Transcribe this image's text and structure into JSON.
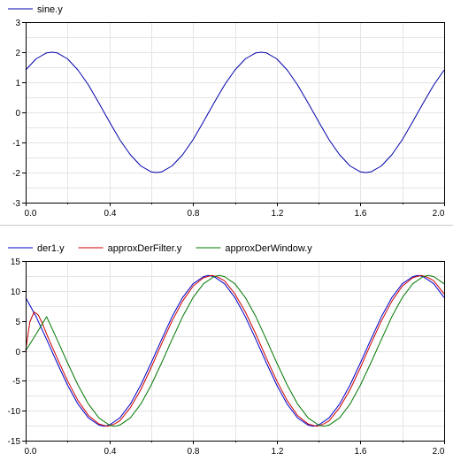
{
  "chart_data": [
    {
      "type": "line",
      "title": "",
      "xlabel": "",
      "ylabel": "",
      "xlim": [
        0,
        2
      ],
      "ylim": [
        -3,
        3
      ],
      "x_ticks": [
        "0.0",
        "0.4",
        "0.8",
        "1.2",
        "1.6",
        "2.0"
      ],
      "y_ticks": [
        "3",
        "2",
        "1",
        "0",
        "-1",
        "-2",
        "-3"
      ],
      "grid": true,
      "legend": "top-left",
      "series": [
        {
          "name": "sine.y",
          "color": "#0000aa",
          "x": [
            0.0,
            0.05,
            0.1,
            0.125,
            0.15,
            0.2,
            0.25,
            0.3,
            0.35,
            0.4,
            0.45,
            0.5,
            0.55,
            0.6,
            0.625,
            0.65,
            0.7,
            0.75,
            0.8,
            0.85,
            0.9,
            0.95,
            1.0,
            1.05,
            1.1,
            1.125,
            1.15,
            1.2,
            1.25,
            1.3,
            1.35,
            1.4,
            1.45,
            1.5,
            1.55,
            1.6,
            1.625,
            1.65,
            1.7,
            1.75,
            1.8,
            1.85,
            1.9,
            1.95,
            2.0
          ],
          "y": [
            1.41,
            1.78,
            1.98,
            2.0,
            1.98,
            1.78,
            1.41,
            0.91,
            0.31,
            -0.31,
            -0.91,
            -1.41,
            -1.78,
            -1.98,
            -2.0,
            -1.98,
            -1.78,
            -1.41,
            -0.91,
            -0.31,
            0.31,
            0.91,
            1.41,
            1.78,
            1.98,
            2.0,
            1.98,
            1.78,
            1.41,
            0.91,
            0.31,
            -0.31,
            -0.91,
            -1.41,
            -1.78,
            -1.98,
            -2.0,
            -1.98,
            -1.78,
            -1.41,
            -0.91,
            -0.31,
            0.31,
            0.91,
            1.41
          ]
        }
      ]
    },
    {
      "type": "line",
      "title": "",
      "xlabel": "",
      "ylabel": "",
      "xlim": [
        0,
        2
      ],
      "ylim": [
        -15,
        15
      ],
      "x_ticks": [
        "0.0",
        "0.4",
        "0.8",
        "1.2",
        "1.6",
        "2.0"
      ],
      "y_ticks": [
        "15",
        "10",
        "5",
        "0",
        "-5",
        "-10",
        "-15"
      ],
      "grid": true,
      "legend": "top-left",
      "series": [
        {
          "name": "der1.y",
          "color": "#0000cc",
          "x": [
            0.0,
            0.05,
            0.1,
            0.15,
            0.2,
            0.25,
            0.3,
            0.35,
            0.375,
            0.4,
            0.45,
            0.5,
            0.55,
            0.6,
            0.65,
            0.7,
            0.75,
            0.8,
            0.85,
            0.875,
            0.9,
            0.95,
            1.0,
            1.05,
            1.1,
            1.15,
            1.2,
            1.25,
            1.3,
            1.35,
            1.375,
            1.4,
            1.45,
            1.5,
            1.55,
            1.6,
            1.65,
            1.7,
            1.75,
            1.8,
            1.85,
            1.875,
            1.9,
            1.95,
            2.0
          ],
          "y": [
            8.9,
            5.7,
            1.9,
            -2.0,
            -5.7,
            -8.9,
            -11.2,
            -12.4,
            -12.6,
            -12.4,
            -11.2,
            -8.9,
            -5.7,
            -2.0,
            1.9,
            5.7,
            8.9,
            11.2,
            12.4,
            12.6,
            12.4,
            11.2,
            8.9,
            5.7,
            1.9,
            -2.0,
            -5.7,
            -8.9,
            -11.2,
            -12.4,
            -12.6,
            -12.4,
            -11.2,
            -8.9,
            -5.7,
            -2.0,
            1.9,
            5.7,
            8.9,
            11.2,
            12.4,
            12.6,
            12.4,
            11.2,
            8.9
          ]
        },
        {
          "name": "approxDerFilter.y",
          "color": "#cc0000",
          "x": [
            0.0,
            0.02,
            0.04,
            0.06,
            0.08,
            0.1,
            0.15,
            0.2,
            0.25,
            0.3,
            0.35,
            0.39,
            0.42,
            0.45,
            0.5,
            0.55,
            0.6,
            0.65,
            0.7,
            0.75,
            0.8,
            0.85,
            0.89,
            0.92,
            0.95,
            1.0,
            1.05,
            1.1,
            1.15,
            1.2,
            1.25,
            1.3,
            1.35,
            1.39,
            1.42,
            1.45,
            1.5,
            1.55,
            1.6,
            1.65,
            1.7,
            1.75,
            1.8,
            1.85,
            1.89,
            1.92,
            1.95,
            2.0
          ],
          "y": [
            0.0,
            4.8,
            6.5,
            6.0,
            4.6,
            2.8,
            -1.2,
            -5.0,
            -8.3,
            -10.8,
            -12.2,
            -12.6,
            -12.3,
            -11.7,
            -9.5,
            -6.5,
            -2.8,
            1.2,
            5.0,
            8.3,
            10.8,
            12.2,
            12.6,
            12.3,
            11.7,
            9.5,
            6.5,
            2.8,
            -1.2,
            -5.0,
            -8.3,
            -10.8,
            -12.2,
            -12.6,
            -12.3,
            -11.7,
            -9.5,
            -6.5,
            -2.8,
            1.2,
            5.0,
            8.3,
            10.8,
            12.2,
            12.6,
            12.3,
            11.7,
            9.5
          ]
        },
        {
          "name": "approxDerWindow.y",
          "color": "#007700",
          "x": [
            0.0,
            0.05,
            0.1,
            0.15,
            0.2,
            0.25,
            0.3,
            0.35,
            0.4,
            0.425,
            0.45,
            0.5,
            0.55,
            0.6,
            0.65,
            0.7,
            0.75,
            0.8,
            0.85,
            0.9,
            0.925,
            0.95,
            1.0,
            1.05,
            1.1,
            1.15,
            1.2,
            1.25,
            1.3,
            1.35,
            1.4,
            1.425,
            1.45,
            1.5,
            1.55,
            1.6,
            1.65,
            1.7,
            1.75,
            1.8,
            1.85,
            1.9,
            1.925,
            1.95,
            2.0
          ],
          "y": [
            0.0,
            2.8,
            5.7,
            1.9,
            -2.0,
            -5.7,
            -8.9,
            -11.2,
            -12.4,
            -12.6,
            -12.4,
            -11.2,
            -8.9,
            -5.7,
            -2.0,
            1.9,
            5.7,
            8.9,
            11.2,
            12.4,
            12.6,
            12.4,
            11.2,
            8.9,
            5.7,
            1.9,
            -2.0,
            -5.7,
            -8.9,
            -11.2,
            -12.4,
            -12.6,
            -12.4,
            -11.2,
            -8.9,
            -5.7,
            -2.0,
            1.9,
            5.7,
            8.9,
            11.2,
            12.4,
            12.6,
            12.4,
            11.2
          ]
        }
      ]
    }
  ]
}
